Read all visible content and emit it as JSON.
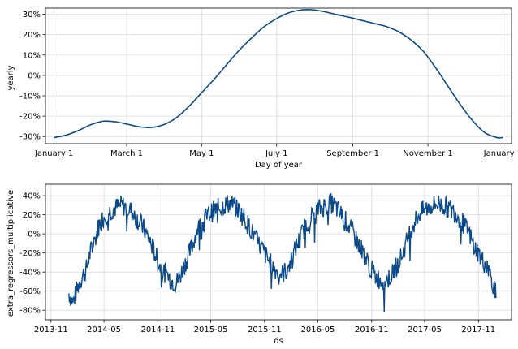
{
  "chart_data": [
    {
      "type": "line",
      "title": "",
      "xlabel": "Day of year",
      "ylabel": "yearly",
      "grid": true,
      "x_ticks": [
        "January 1",
        "March 1",
        "May 1",
        "July 1",
        "September 1",
        "November 1",
        "January 1"
      ],
      "x_tick_days": [
        0,
        59,
        120,
        181,
        243,
        304,
        365
      ],
      "xlim": [
        -7,
        372
      ],
      "y_ticks": [
        "30%",
        "20%",
        "10%",
        "0%",
        "-10%",
        "-20%",
        "-30%"
      ],
      "y_tick_values": [
        30,
        20,
        10,
        0,
        -10,
        -20,
        -30
      ],
      "ylim": [
        -33.5,
        33
      ],
      "line_color": "#0b4a8b",
      "series": [
        {
          "x": [
            0,
            10,
            20,
            30,
            40,
            50,
            60,
            70,
            80,
            90,
            100,
            110,
            120,
            130,
            140,
            150,
            160,
            170,
            180,
            190,
            200,
            210,
            220,
            230,
            240,
            250,
            260,
            270,
            280,
            290,
            300,
            310,
            320,
            330,
            340,
            350,
            360,
            365
          ],
          "values": [
            -30.5,
            -29.3,
            -27.0,
            -24.2,
            -22.5,
            -22.8,
            -24.0,
            -25.3,
            -25.5,
            -24.0,
            -20.5,
            -15.0,
            -8.5,
            -2.0,
            5.0,
            12.0,
            18.0,
            23.5,
            27.5,
            30.5,
            32.0,
            32.2,
            31.2,
            29.8,
            28.5,
            27.0,
            25.5,
            24.0,
            21.5,
            17.5,
            12.0,
            4.0,
            -5.0,
            -14.0,
            -22.0,
            -28.0,
            -30.5,
            -30.5
          ]
        }
      ]
    },
    {
      "type": "line",
      "title": "",
      "xlabel": "ds",
      "ylabel": "extra_regressors_multiplicative",
      "grid": true,
      "x_ticks": [
        "2013-11",
        "2014-05",
        "2014-11",
        "2015-05",
        "2015-11",
        "2016-05",
        "2016-11",
        "2017-05",
        "2017-11"
      ],
      "xlim": [
        "2013-10-13",
        "2018-02-22"
      ],
      "y_ticks": [
        "40%",
        "20%",
        "0%",
        "-20%",
        "-40%",
        "-60%",
        "-80%"
      ],
      "y_tick_values": [
        40,
        20,
        0,
        -20,
        -40,
        -60,
        -80
      ],
      "ylim": [
        -90,
        52
      ],
      "line_color": "#0b4a8b",
      "series": [
        {
          "x": [
            "2014-01-01",
            "2014-01-15",
            "2014-02-01",
            "2014-02-15",
            "2014-03-01",
            "2014-03-15",
            "2014-04-01",
            "2014-04-15",
            "2014-05-01",
            "2014-05-15",
            "2014-06-01",
            "2014-06-15",
            "2014-07-01",
            "2014-07-15",
            "2014-08-01",
            "2014-08-15",
            "2014-09-01",
            "2014-09-15",
            "2014-10-01",
            "2014-10-15",
            "2014-11-01",
            "2014-11-15",
            "2014-12-01",
            "2014-12-15",
            "2015-01-01",
            "2015-01-15",
            "2015-02-01",
            "2015-02-15",
            "2015-03-01",
            "2015-03-15",
            "2015-04-01",
            "2015-04-15",
            "2015-05-01",
            "2015-05-15",
            "2015-06-01",
            "2015-06-15",
            "2015-07-01",
            "2015-07-15",
            "2015-08-01",
            "2015-08-15",
            "2015-09-01",
            "2015-09-15",
            "2015-10-01",
            "2015-10-15",
            "2015-11-01",
            "2015-11-15",
            "2015-12-01",
            "2015-12-15",
            "2016-01-01",
            "2016-01-15",
            "2016-02-01",
            "2016-02-15",
            "2016-03-01",
            "2016-03-15",
            "2016-04-01",
            "2016-04-15",
            "2016-05-01",
            "2016-05-15",
            "2016-06-01",
            "2016-06-15",
            "2016-07-01",
            "2016-07-15",
            "2016-08-01",
            "2016-08-15",
            "2016-09-01",
            "2016-09-15",
            "2016-10-01",
            "2016-10-15",
            "2016-11-01",
            "2016-11-15",
            "2016-12-01",
            "2016-12-15",
            "2017-01-01",
            "2017-01-15",
            "2017-02-01",
            "2017-02-15",
            "2017-03-01",
            "2017-03-15",
            "2017-04-01",
            "2017-04-15",
            "2017-05-01",
            "2017-05-15",
            "2017-06-01",
            "2017-06-15",
            "2017-07-01",
            "2017-07-15",
            "2017-08-01",
            "2017-08-15",
            "2017-09-01",
            "2017-09-15",
            "2017-10-01",
            "2017-10-15",
            "2017-11-01",
            "2017-11-15",
            "2017-12-01",
            "2017-12-15",
            "2017-12-31"
          ],
          "values": [
            -62,
            -72,
            -55,
            -45,
            -38,
            -20,
            -5,
            10,
            18,
            22,
            26,
            28,
            30,
            28,
            25,
            18,
            12,
            5,
            -5,
            -15,
            -28,
            -38,
            -42,
            -48,
            -52,
            -45,
            -32,
            -22,
            -10,
            5,
            10,
            18,
            22,
            25,
            28,
            30,
            32,
            30,
            26,
            20,
            12,
            5,
            -5,
            -12,
            -20,
            -28,
            -35,
            -40,
            -42,
            -38,
            -28,
            -15,
            -5,
            5,
            15,
            20,
            25,
            28,
            30,
            32,
            28,
            22,
            15,
            8,
            0,
            -10,
            -18,
            -28,
            -38,
            -45,
            -48,
            -50,
            -46,
            -40,
            -30,
            -20,
            -8,
            5,
            15,
            22,
            25,
            28,
            30,
            32,
            30,
            28,
            25,
            22,
            15,
            8,
            0,
            -12,
            -20,
            -28,
            -35,
            -45,
            -65
          ]
        }
      ]
    }
  ]
}
